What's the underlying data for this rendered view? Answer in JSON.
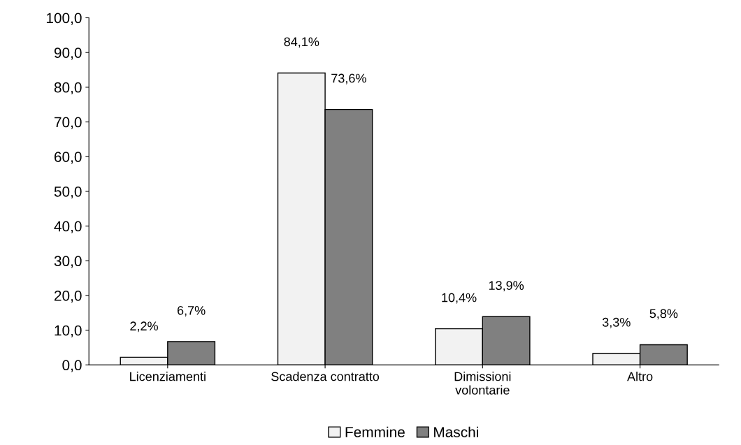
{
  "chart_data": {
    "type": "bar",
    "categories": [
      "Licenziamenti",
      "Scadenza contratto",
      "Dimissioni\nvolontarie",
      "Altro"
    ],
    "series": [
      {
        "name": "Femmine",
        "color": "#f2f2f2",
        "values": [
          2.2,
          84.1,
          10.4,
          3.3
        ],
        "value_labels": [
          "2,2%",
          "84,1%",
          "10,4%",
          "3,3%"
        ]
      },
      {
        "name": "Maschi",
        "color": "#808080",
        "values": [
          6.7,
          73.6,
          13.9,
          5.8
        ],
        "value_labels": [
          "6,7%",
          "73,6%",
          "13,9%",
          "5,8%"
        ]
      }
    ],
    "ylim": [
      0,
      100
    ],
    "yticks": [
      {
        "value": 0,
        "label": "0,0"
      },
      {
        "value": 10,
        "label": "10,0"
      },
      {
        "value": 20,
        "label": "20,0"
      },
      {
        "value": 30,
        "label": "30,0"
      },
      {
        "value": 40,
        "label": "40,0"
      },
      {
        "value": 50,
        "label": "50,0"
      },
      {
        "value": 60,
        "label": "60,0"
      },
      {
        "value": 70,
        "label": "70,0"
      },
      {
        "value": 80,
        "label": "80,0"
      },
      {
        "value": 90,
        "label": "90,0"
      },
      {
        "value": 100,
        "label": "100,0"
      }
    ],
    "grid": false,
    "legend": "bottom"
  }
}
